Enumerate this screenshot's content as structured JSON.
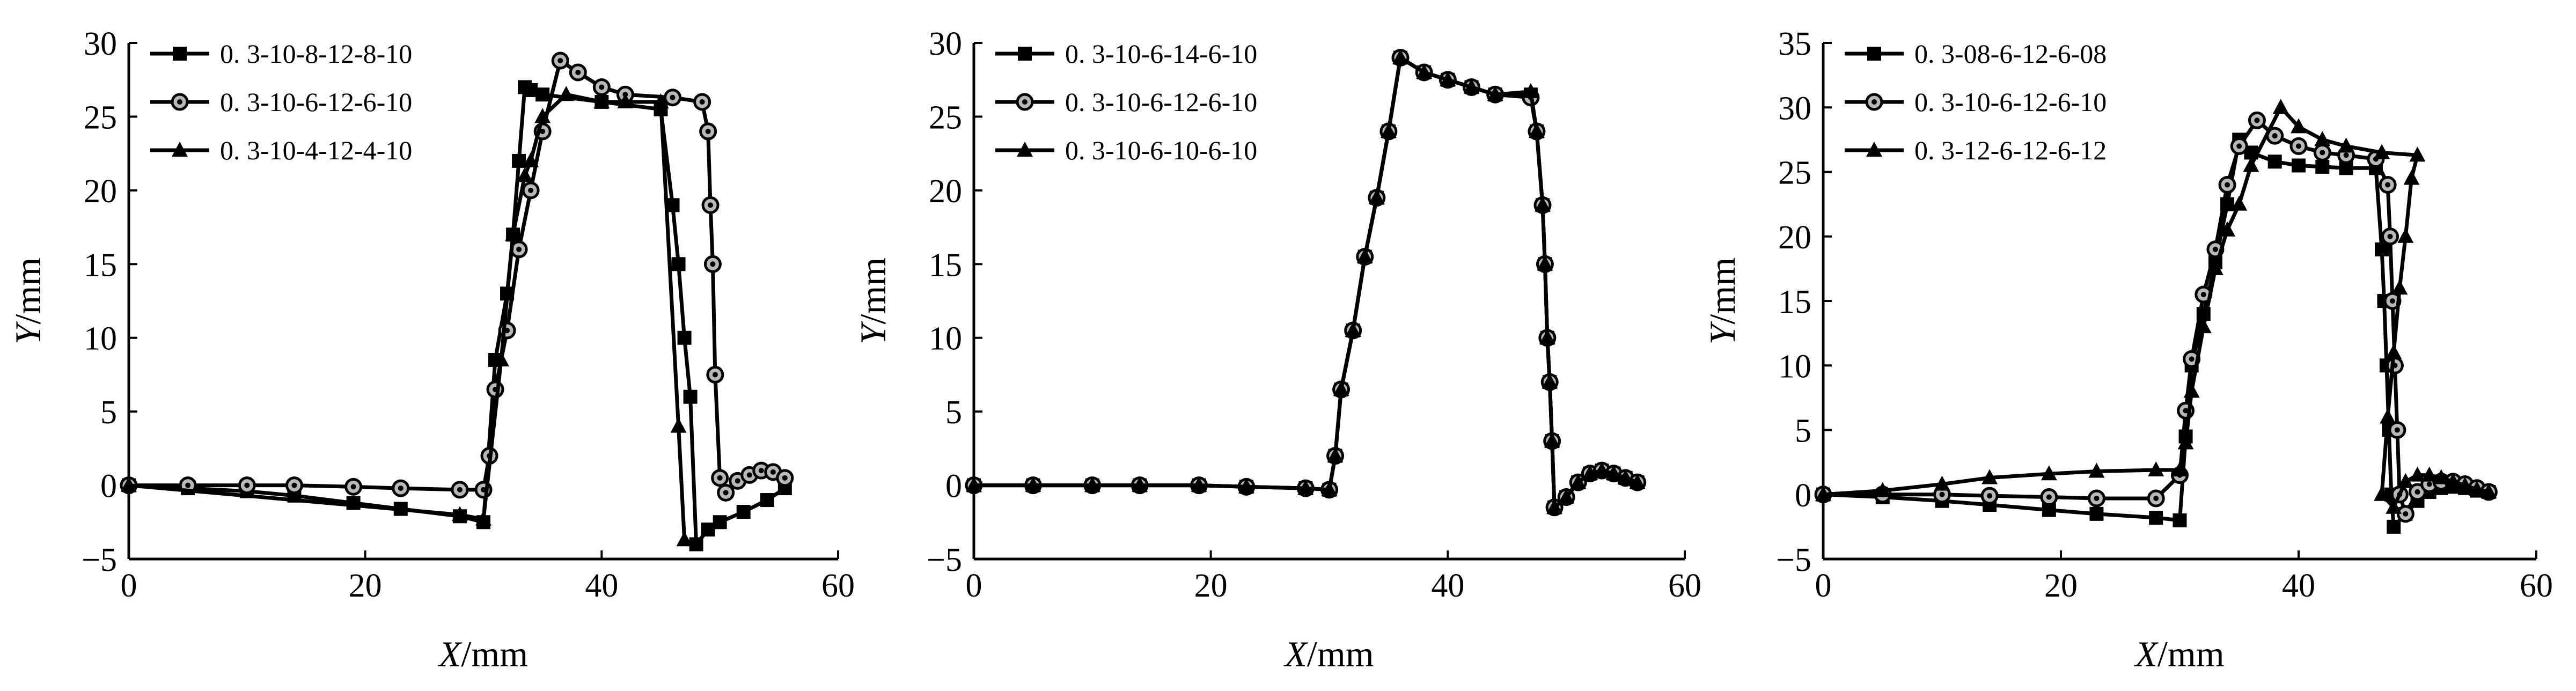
{
  "chart_data": [
    {
      "type": "line",
      "xlabel_var": "X",
      "xlabel_unit": "/mm",
      "ylabel_var": "Y",
      "ylabel_unit": "/mm",
      "xlim": [
        0,
        60
      ],
      "ylim": [
        -5,
        30
      ],
      "xticks": [
        0,
        20,
        40,
        60
      ],
      "yticks": [
        -5,
        0,
        5,
        10,
        15,
        20,
        25,
        30
      ],
      "grid": false,
      "legend_position": "top-left",
      "series": [
        {
          "name": "0. 3-10-8-12-8-10",
          "marker": "square",
          "x": [
            0,
            5,
            10,
            14,
            19,
            23,
            28,
            30,
            31,
            32,
            32.5,
            33,
            33.5,
            34,
            35,
            40,
            45,
            46,
            46.5,
            47,
            47.5,
            48,
            49,
            50,
            52,
            54,
            55.5
          ],
          "y": [
            0,
            -0.2,
            -0.4,
            -0.7,
            -1.2,
            -1.6,
            -2.1,
            -2.5,
            8.5,
            13,
            17,
            22,
            27,
            26.8,
            26.5,
            26,
            25.5,
            19,
            15,
            10,
            6,
            -4,
            -3,
            -2.5,
            -1.8,
            -1,
            -0.2
          ]
        },
        {
          "name": "0. 3-10-6-12-6-10",
          "marker": "circle",
          "x": [
            0,
            5,
            10,
            14,
            19,
            23,
            28,
            30,
            30.5,
            31,
            32,
            33,
            34,
            35,
            36.5,
            38,
            40,
            42,
            46,
            48.5,
            49,
            49.2,
            49.4,
            49.6,
            50,
            50.5,
            51.5,
            52.5,
            53.5,
            54.5,
            55.5
          ],
          "y": [
            0,
            0,
            0,
            0,
            -0.1,
            -0.2,
            -0.3,
            -0.3,
            2,
            6.5,
            10.5,
            16,
            20,
            24,
            28.8,
            28,
            27,
            26.5,
            26.3,
            26,
            24,
            19,
            15,
            7.5,
            0.5,
            -0.5,
            0.3,
            0.7,
            1,
            0.9,
            0.5
          ]
        },
        {
          "name": "0. 3-10-4-12-4-10",
          "marker": "triangle",
          "x": [
            0,
            28,
            30,
            31.5,
            32.5,
            33.5,
            34,
            35,
            37,
            40,
            42,
            45,
            46.5,
            47
          ],
          "y": [
            0,
            -2,
            -2.3,
            8.5,
            17,
            21,
            22,
            25,
            26.5,
            26,
            26,
            26,
            4,
            -3.7
          ]
        }
      ]
    },
    {
      "type": "line",
      "xlabel_var": "X",
      "xlabel_unit": "/mm",
      "ylabel_var": "Y",
      "ylabel_unit": "/mm",
      "xlim": [
        0,
        60
      ],
      "ylim": [
        -5,
        30
      ],
      "xticks": [
        0,
        20,
        40,
        60
      ],
      "yticks": [
        -5,
        0,
        5,
        10,
        15,
        20,
        25,
        30
      ],
      "grid": false,
      "legend_position": "top-left",
      "series": [
        {
          "name": "0. 3-10-6-14-6-10",
          "marker": "square",
          "x": [
            0,
            5,
            10,
            14,
            19,
            23,
            28,
            30,
            30.5,
            31,
            32,
            33,
            34,
            35,
            36,
            38,
            40,
            42,
            44,
            47,
            47.5,
            48,
            48.2,
            48.4,
            48.6,
            48.8,
            49,
            50,
            51,
            52,
            53,
            54,
            55,
            56
          ],
          "y": [
            0,
            0,
            0,
            0,
            0,
            -0.1,
            -0.2,
            -0.3,
            2,
            6.5,
            10.5,
            15.5,
            19.5,
            24,
            29,
            28,
            27.5,
            27,
            26.5,
            26.5,
            24,
            19,
            15,
            10,
            7,
            3,
            -1.5,
            -0.8,
            0.2,
            0.8,
            1.0,
            0.8,
            0.5,
            0.2
          ]
        },
        {
          "name": "0. 3-10-6-12-6-10",
          "marker": "circle",
          "x": [
            0,
            5,
            10,
            14,
            19,
            23,
            28,
            30,
            30.5,
            31,
            32,
            33,
            34,
            35,
            36,
            38,
            40,
            42,
            44,
            47,
            47.5,
            48,
            48.2,
            48.4,
            48.6,
            48.8,
            49,
            50,
            51,
            52,
            53,
            54,
            55,
            56
          ],
          "y": [
            0,
            0,
            0,
            0,
            0,
            -0.1,
            -0.2,
            -0.3,
            2,
            6.5,
            10.5,
            15.5,
            19.5,
            24,
            29,
            28,
            27.5,
            27,
            26.5,
            26.3,
            24,
            19,
            15,
            10,
            7,
            3,
            -1.5,
            -0.8,
            0.2,
            0.8,
            1.0,
            0.8,
            0.5,
            0.2
          ]
        },
        {
          "name": "0. 3-10-6-10-6-10",
          "marker": "triangle",
          "x": [
            0,
            5,
            10,
            14,
            19,
            23,
            28,
            30,
            30.5,
            31,
            32,
            33,
            34,
            35,
            36,
            38,
            40,
            42,
            44,
            47,
            47.5,
            48,
            48.2,
            48.4,
            48.6,
            48.8,
            49,
            50,
            51,
            52,
            53,
            54,
            55,
            56
          ],
          "y": [
            0,
            0,
            0,
            0,
            0,
            -0.1,
            -0.2,
            -0.3,
            2,
            6.5,
            10.5,
            15.5,
            19.5,
            24,
            29,
            28,
            27.5,
            27,
            26.5,
            26.7,
            24,
            19,
            15,
            10,
            7,
            3,
            -1.5,
            -0.8,
            0.2,
            0.8,
            1.0,
            0.8,
            0.5,
            0.2
          ]
        }
      ]
    },
    {
      "type": "line",
      "xlabel_var": "X",
      "xlabel_unit": "/mm",
      "ylabel_var": "Y",
      "ylabel_unit": "/mm",
      "xlim": [
        0,
        60
      ],
      "ylim": [
        -5,
        35
      ],
      "xticks": [
        0,
        20,
        40,
        60
      ],
      "yticks": [
        -5,
        0,
        5,
        10,
        15,
        20,
        25,
        30,
        35
      ],
      "grid": false,
      "legend_position": "top-left",
      "series": [
        {
          "name": "0. 3-08-6-12-6-08",
          "marker": "square",
          "x": [
            0,
            5,
            10,
            14,
            19,
            23,
            28,
            30,
            30.5,
            31,
            32,
            33,
            34,
            35,
            36,
            38,
            40,
            42,
            44,
            46.5,
            47,
            47.2,
            47.4,
            47.6,
            47.8,
            48,
            49,
            50,
            51,
            52,
            53,
            54,
            55,
            56
          ],
          "y": [
            0,
            -0.2,
            -0.5,
            -0.8,
            -1.2,
            -1.5,
            -1.8,
            -2,
            4.5,
            10,
            14,
            18,
            22.5,
            27.5,
            26.5,
            25.8,
            25.5,
            25.4,
            25.3,
            25.3,
            19,
            15,
            10,
            5,
            0,
            -2.5,
            -1.5,
            -0.5,
            0.2,
            0.5,
            0.6,
            0.5,
            0.3,
            0.2
          ]
        },
        {
          "name": "0. 3-10-6-12-6-10",
          "marker": "circle",
          "x": [
            0,
            5,
            10,
            14,
            19,
            23,
            28,
            30,
            30.5,
            31,
            32,
            33,
            34,
            35,
            36.5,
            38,
            40,
            42,
            44,
            46.5,
            47.5,
            47.7,
            47.9,
            48.1,
            48.3,
            48.5,
            49,
            50,
            51,
            52,
            53,
            54,
            55,
            56
          ],
          "y": [
            0,
            0,
            0,
            -0.1,
            -0.2,
            -0.3,
            -0.3,
            1.5,
            6.5,
            10.5,
            15.5,
            19,
            24,
            27,
            29,
            27.8,
            27,
            26.5,
            26.3,
            26,
            24,
            20,
            15,
            10,
            5,
            0,
            -1.5,
            0.2,
            0.8,
            1,
            1,
            0.8,
            0.5,
            0.2
          ]
        },
        {
          "name": "0. 3-12-6-12-6-12",
          "marker": "triangle",
          "x": [
            0,
            5,
            10,
            14,
            19,
            23,
            28,
            30,
            30.5,
            31,
            32,
            33,
            34,
            35,
            36,
            38.5,
            40,
            42,
            44,
            47,
            50,
            49.5,
            49,
            48.5,
            48,
            47.5,
            47,
            48,
            49,
            50,
            51,
            52,
            53,
            54,
            55,
            56
          ],
          "y": [
            0,
            0.3,
            0.8,
            1.3,
            1.6,
            1.8,
            1.9,
            1.9,
            4,
            8,
            13,
            17.5,
            20.5,
            22.5,
            25.5,
            30,
            28.5,
            27.5,
            27,
            26.5,
            26.3,
            24.5,
            20,
            16,
            11,
            6,
            0,
            -1,
            1,
            1.5,
            1.5,
            1.3,
            1,
            0.7,
            0.4,
            0.2
          ]
        }
      ]
    }
  ]
}
